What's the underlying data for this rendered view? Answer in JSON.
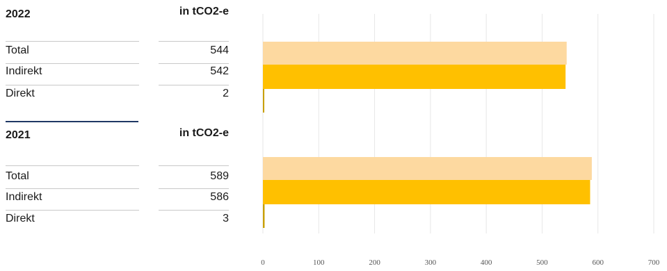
{
  "tables": [
    {
      "year": "2022",
      "unit": "in tCO2-e",
      "rows": [
        {
          "label": "Total",
          "value": "544"
        },
        {
          "label": "Indirekt",
          "value": "542"
        },
        {
          "label": "Direkt",
          "value": "2"
        }
      ]
    },
    {
      "year": "2021",
      "unit": "in tCO2-e",
      "rows": [
        {
          "label": "Total",
          "value": "589"
        },
        {
          "label": "Indirekt",
          "value": "586"
        },
        {
          "label": "Direkt",
          "value": "3"
        }
      ]
    }
  ],
  "chart_data": {
    "type": "bar",
    "orientation": "horizontal",
    "groups": [
      {
        "year": "2022",
        "total": 544,
        "indirekt": 542,
        "direkt": 2
      },
      {
        "year": "2021",
        "total": 589,
        "indirekt": 586,
        "direkt": 3
      }
    ],
    "xlim": [
      0,
      700
    ],
    "xticks": [
      "0",
      "100",
      "200",
      "300",
      "400",
      "500",
      "600",
      "700"
    ],
    "grid": true,
    "colors": {
      "total": "#fdd9a0",
      "indirekt": "#ffc000",
      "direkt": "#c9a000",
      "grid": "#e6e6e6",
      "separator": "#1f3864"
    }
  }
}
